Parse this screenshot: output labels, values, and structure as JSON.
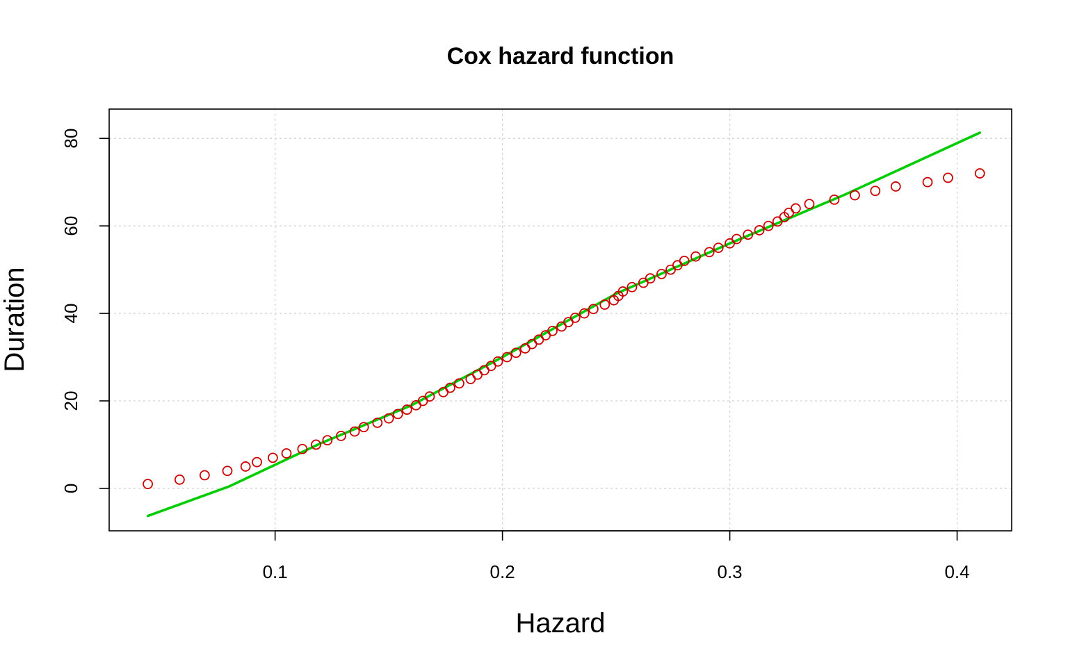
{
  "chart_data": {
    "type": "scatter",
    "title": "Cox hazard function",
    "xlabel": "Hazard",
    "ylabel": "Duration",
    "xlim": [
      0.027,
      0.424
    ],
    "ylim": [
      -9.7,
      86.7
    ],
    "xticks": [
      0.1,
      0.2,
      0.3,
      0.4
    ],
    "xtick_labels": [
      "0.1",
      "0.2",
      "0.3",
      "0.4"
    ],
    "yticks": [
      0,
      20,
      40,
      60,
      80
    ],
    "ytick_labels": [
      "0",
      "20",
      "40",
      "60",
      "80"
    ],
    "grid": true,
    "points_color": "#cc0000",
    "line_color": "#00cc00",
    "grid_color": "#d3d3d3",
    "points": {
      "x": [
        0.044,
        0.058,
        0.069,
        0.079,
        0.087,
        0.092,
        0.099,
        0.105,
        0.112,
        0.118,
        0.123,
        0.129,
        0.135,
        0.139,
        0.145,
        0.15,
        0.154,
        0.158,
        0.162,
        0.165,
        0.168,
        0.174,
        0.177,
        0.181,
        0.186,
        0.189,
        0.192,
        0.195,
        0.198,
        0.202,
        0.206,
        0.21,
        0.213,
        0.216,
        0.219,
        0.222,
        0.226,
        0.229,
        0.232,
        0.236,
        0.24,
        0.245,
        0.249,
        0.251,
        0.253,
        0.257,
        0.262,
        0.265,
        0.27,
        0.274,
        0.277,
        0.28,
        0.285,
        0.291,
        0.295,
        0.3,
        0.303,
        0.308,
        0.313,
        0.317,
        0.321,
        0.324,
        0.326,
        0.329,
        0.335,
        0.346,
        0.355,
        0.364,
        0.373,
        0.387,
        0.396,
        0.41
      ],
      "y": [
        1,
        2,
        3,
        4,
        5,
        6,
        7,
        8,
        9,
        10,
        11,
        12,
        13,
        14,
        15,
        16,
        17,
        18,
        19,
        20,
        21,
        22,
        23,
        24,
        25,
        26,
        27,
        28,
        29,
        30,
        31,
        32,
        33,
        34,
        35,
        36,
        37,
        38,
        39,
        40,
        41,
        42,
        43,
        44,
        45,
        46,
        47,
        48,
        49,
        50,
        51,
        52,
        53,
        54,
        55,
        56,
        57,
        58,
        59,
        60,
        61,
        62,
        63,
        64,
        65,
        66,
        67,
        68,
        69,
        70,
        71,
        72
      ]
    },
    "fit_line": {
      "x": [
        0.044,
        0.08,
        0.12,
        0.16,
        0.2,
        0.25,
        0.3,
        0.35,
        0.41
      ],
      "y": [
        -6.3,
        0.5,
        10.3,
        19.0,
        30.0,
        44.5,
        56.0,
        67.0,
        81.3
      ]
    }
  }
}
